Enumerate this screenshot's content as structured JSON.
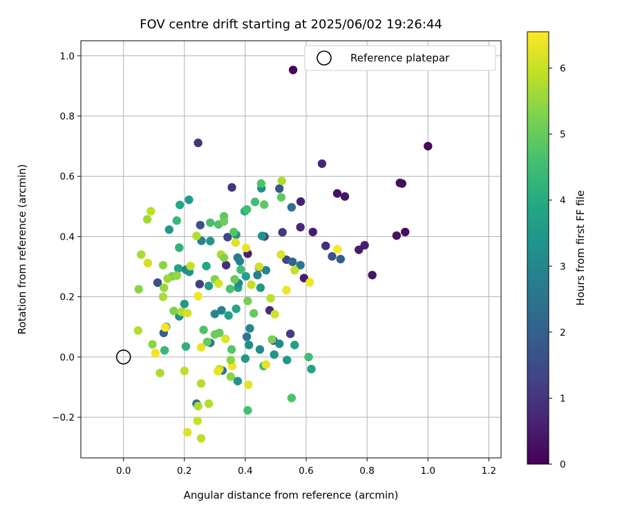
{
  "chart_data": {
    "type": "scatter",
    "title": "FOV centre drift starting at 2025/06/02 19:26:44",
    "xlabel": "Angular distance from reference (arcmin)",
    "ylabel": "Rotation from reference (arcmin)",
    "xlim": [
      -0.14,
      1.24
    ],
    "ylim": [
      -0.335,
      1.05
    ],
    "xticks": [
      0.0,
      0.2,
      0.4,
      0.6,
      0.8,
      1.0,
      1.2
    ],
    "xtick_labels": [
      "0.0",
      "0.2",
      "0.4",
      "0.6",
      "0.8",
      "1.0",
      "1.2"
    ],
    "yticks": [
      -0.2,
      0.0,
      0.2,
      0.4,
      0.6,
      0.8,
      1.0
    ],
    "ytick_labels": [
      "−0.2",
      "0.0",
      "0.2",
      "0.4",
      "0.6",
      "0.8",
      "1.0"
    ],
    "grid": true,
    "legend": {
      "position": "top-right",
      "entries": [
        "Reference platepar"
      ]
    },
    "reference_point": {
      "x": 0.0,
      "y": 0.0
    },
    "colorbar": {
      "label": "Hours from first FF file",
      "min": 0,
      "max": 6.55,
      "ticks": [
        0,
        1,
        2,
        3,
        4,
        5,
        6
      ],
      "tick_labels": [
        "0",
        "1",
        "2",
        "3",
        "4",
        "5",
        "6"
      ],
      "colormap": "viridis"
    },
    "points": [
      {
        "x": 0.557,
        "y": 0.953,
        "c": 0.05
      },
      {
        "x": 1.0,
        "y": 0.7,
        "c": 0.1
      },
      {
        "x": 0.908,
        "y": 0.578,
        "c": 0.2
      },
      {
        "x": 0.915,
        "y": 0.576,
        "c": 0.25
      },
      {
        "x": 0.925,
        "y": 0.415,
        "c": 0.2
      },
      {
        "x": 0.897,
        "y": 0.403,
        "c": 0.3
      },
      {
        "x": 0.702,
        "y": 0.543,
        "c": 0.3
      },
      {
        "x": 0.727,
        "y": 0.533,
        "c": 0.4
      },
      {
        "x": 0.817,
        "y": 0.272,
        "c": 0.4
      },
      {
        "x": 0.792,
        "y": 0.371,
        "c": 0.6
      },
      {
        "x": 0.773,
        "y": 0.356,
        "c": 0.5
      },
      {
        "x": 0.652,
        "y": 0.642,
        "c": 0.7
      },
      {
        "x": 0.622,
        "y": 0.415,
        "c": 0.5
      },
      {
        "x": 0.664,
        "y": 0.369,
        "c": 0.9
      },
      {
        "x": 0.245,
        "y": 0.711,
        "c": 1.0
      },
      {
        "x": 0.582,
        "y": 0.516,
        "c": 0.6
      },
      {
        "x": 0.581,
        "y": 0.431,
        "c": 0.8
      },
      {
        "x": 0.593,
        "y": 0.262,
        "c": 0.5
      },
      {
        "x": 0.356,
        "y": 0.563,
        "c": 1.0
      },
      {
        "x": 0.522,
        "y": 0.414,
        "c": 1.1
      },
      {
        "x": 0.463,
        "y": 0.4,
        "c": 1.2
      },
      {
        "x": 0.408,
        "y": 0.343,
        "c": 0.6
      },
      {
        "x": 0.337,
        "y": 0.305,
        "c": 0.9
      },
      {
        "x": 0.685,
        "y": 0.334,
        "c": 1.7
      },
      {
        "x": 0.713,
        "y": 0.325,
        "c": 1.9
      },
      {
        "x": 0.252,
        "y": 0.438,
        "c": 1.6
      },
      {
        "x": 0.512,
        "y": 0.559,
        "c": 1.8
      },
      {
        "x": 0.112,
        "y": 0.247,
        "c": 1.6
      },
      {
        "x": 0.25,
        "y": 0.242,
        "c": 1.2
      },
      {
        "x": 0.48,
        "y": 0.155,
        "c": 0.8
      },
      {
        "x": 0.548,
        "y": 0.077,
        "c": 1.2
      },
      {
        "x": 0.492,
        "y": 0.055,
        "c": 0.4
      },
      {
        "x": 0.535,
        "y": 0.323,
        "c": 1.4
      },
      {
        "x": 0.555,
        "y": 0.316,
        "c": 2.1
      },
      {
        "x": 0.581,
        "y": 0.305,
        "c": 2.6
      },
      {
        "x": 0.552,
        "y": 0.497,
        "c": 2.4
      },
      {
        "x": 0.342,
        "y": 0.398,
        "c": 1.4
      },
      {
        "x": 0.256,
        "y": 0.386,
        "c": 2.8
      },
      {
        "x": 0.132,
        "y": 0.08,
        "c": 2.0
      },
      {
        "x": 0.24,
        "y": -0.155,
        "c": 2.3
      },
      {
        "x": 0.325,
        "y": -0.045,
        "c": 2.5
      },
      {
        "x": 0.445,
        "y": 0.297,
        "c": 1.8
      },
      {
        "x": 0.468,
        "y": 0.288,
        "c": 3.0
      },
      {
        "x": 0.453,
        "y": 0.56,
        "c": 3.2
      },
      {
        "x": 0.215,
        "y": 0.522,
        "c": 3.6
      },
      {
        "x": 0.185,
        "y": 0.505,
        "c": 3.9
      },
      {
        "x": 0.15,
        "y": 0.423,
        "c": 3.5
      },
      {
        "x": 0.285,
        "y": 0.385,
        "c": 3.5
      },
      {
        "x": 0.37,
        "y": 0.406,
        "c": 3.4
      },
      {
        "x": 0.398,
        "y": 0.484,
        "c": 4.1
      },
      {
        "x": 0.405,
        "y": 0.49,
        "c": 4.5
      },
      {
        "x": 0.272,
        "y": 0.302,
        "c": 3.9
      },
      {
        "x": 0.375,
        "y": 0.33,
        "c": 2.6
      },
      {
        "x": 0.382,
        "y": 0.318,
        "c": 2.9
      },
      {
        "x": 0.44,
        "y": 0.272,
        "c": 2.8
      },
      {
        "x": 0.402,
        "y": 0.268,
        "c": 3.7
      },
      {
        "x": 0.45,
        "y": 0.23,
        "c": 3.5
      },
      {
        "x": 0.2,
        "y": 0.176,
        "c": 3.5
      },
      {
        "x": 0.183,
        "y": 0.135,
        "c": 3.2
      },
      {
        "x": 0.18,
        "y": 0.294,
        "c": 3.8
      },
      {
        "x": 0.183,
        "y": 0.363,
        "c": 4.2
      },
      {
        "x": 0.205,
        "y": 0.29,
        "c": 3.0
      },
      {
        "x": 0.216,
        "y": 0.283,
        "c": 3.3
      },
      {
        "x": 0.28,
        "y": 0.236,
        "c": 3.6
      },
      {
        "x": 0.3,
        "y": 0.143,
        "c": 3.0
      },
      {
        "x": 0.322,
        "y": 0.155,
        "c": 2.9
      },
      {
        "x": 0.285,
        "y": 0.047,
        "c": 2.7
      },
      {
        "x": 0.345,
        "y": 0.138,
        "c": 3.8
      },
      {
        "x": 0.376,
        "y": 0.23,
        "c": 3.8
      },
      {
        "x": 0.378,
        "y": 0.245,
        "c": 3.1
      },
      {
        "x": 0.405,
        "y": 0.067,
        "c": 2.6
      },
      {
        "x": 0.412,
        "y": 0.04,
        "c": 3.2
      },
      {
        "x": 0.415,
        "y": 0.095,
        "c": 3.0
      },
      {
        "x": 0.4,
        "y": -0.005,
        "c": 3.5
      },
      {
        "x": 0.37,
        "y": 0.16,
        "c": 3.9
      },
      {
        "x": 0.375,
        "y": -0.08,
        "c": 3.4
      },
      {
        "x": 0.448,
        "y": 0.025,
        "c": 3.1
      },
      {
        "x": 0.512,
        "y": 0.044,
        "c": 3.2
      },
      {
        "x": 0.495,
        "y": 0.008,
        "c": 3.4
      },
      {
        "x": 0.537,
        "y": -0.01,
        "c": 3.5
      },
      {
        "x": 0.562,
        "y": 0.04,
        "c": 3.7
      },
      {
        "x": 0.608,
        "y": 0.0,
        "c": 4.5
      },
      {
        "x": 0.617,
        "y": -0.04,
        "c": 3.8
      },
      {
        "x": 0.455,
        "y": 0.402,
        "c": 3.3
      },
      {
        "x": 0.46,
        "y": -0.03,
        "c": 4.4
      },
      {
        "x": 0.408,
        "y": -0.177,
        "c": 4.6
      },
      {
        "x": 0.552,
        "y": -0.136,
        "c": 4.7
      },
      {
        "x": 0.175,
        "y": 0.453,
        "c": 4.4
      },
      {
        "x": 0.285,
        "y": 0.446,
        "c": 4.6
      },
      {
        "x": 0.312,
        "y": 0.44,
        "c": 4.7
      },
      {
        "x": 0.33,
        "y": 0.467,
        "c": 4.9
      },
      {
        "x": 0.33,
        "y": 0.45,
        "c": 5.1
      },
      {
        "x": 0.362,
        "y": 0.415,
        "c": 4.8
      },
      {
        "x": 0.432,
        "y": 0.515,
        "c": 4.5
      },
      {
        "x": 0.452,
        "y": 0.576,
        "c": 4.7
      },
      {
        "x": 0.462,
        "y": 0.506,
        "c": 4.9
      },
      {
        "x": 0.518,
        "y": 0.53,
        "c": 4.9
      },
      {
        "x": 0.205,
        "y": 0.035,
        "c": 4.2
      },
      {
        "x": 0.135,
        "y": 0.022,
        "c": 4.4
      },
      {
        "x": 0.14,
        "y": 0.1,
        "c": 4.1
      },
      {
        "x": 0.263,
        "y": 0.09,
        "c": 4.7
      },
      {
        "x": 0.275,
        "y": 0.05,
        "c": 5.0
      },
      {
        "x": 0.3,
        "y": 0.075,
        "c": 5.1
      },
      {
        "x": 0.315,
        "y": 0.08,
        "c": 5.0
      },
      {
        "x": 0.355,
        "y": 0.025,
        "c": 4.8
      },
      {
        "x": 0.385,
        "y": 0.29,
        "c": 4.5
      },
      {
        "x": 0.365,
        "y": 0.258,
        "c": 5.0
      },
      {
        "x": 0.35,
        "y": 0.226,
        "c": 4.7
      },
      {
        "x": 0.3,
        "y": 0.258,
        "c": 5.3
      },
      {
        "x": 0.408,
        "y": 0.186,
        "c": 5.2
      },
      {
        "x": 0.428,
        "y": 0.145,
        "c": 5.0
      },
      {
        "x": 0.488,
        "y": 0.058,
        "c": 5.2
      },
      {
        "x": 0.352,
        "y": -0.065,
        "c": 5.4
      },
      {
        "x": 0.13,
        "y": 0.305,
        "c": 5.4
      },
      {
        "x": 0.16,
        "y": 0.268,
        "c": 5.2
      },
      {
        "x": 0.175,
        "y": 0.27,
        "c": 5.5
      },
      {
        "x": 0.19,
        "y": 0.15,
        "c": 5.8
      },
      {
        "x": 0.165,
        "y": 0.153,
        "c": 5.3
      },
      {
        "x": 0.145,
        "y": 0.26,
        "c": 5.6
      },
      {
        "x": 0.133,
        "y": 0.23,
        "c": 5.5
      },
      {
        "x": 0.13,
        "y": 0.2,
        "c": 5.7
      },
      {
        "x": 0.095,
        "y": 0.042,
        "c": 5.4
      },
      {
        "x": 0.245,
        "y": -0.163,
        "c": 5.7
      },
      {
        "x": 0.28,
        "y": -0.155,
        "c": 5.8
      },
      {
        "x": 0.243,
        "y": -0.212,
        "c": 6.0
      },
      {
        "x": 0.255,
        "y": -0.27,
        "c": 5.9
      },
      {
        "x": 0.21,
        "y": -0.25,
        "c": 6.2
      },
      {
        "x": 0.12,
        "y": -0.053,
        "c": 5.7
      },
      {
        "x": 0.2,
        "y": -0.046,
        "c": 5.9
      },
      {
        "x": 0.255,
        "y": -0.088,
        "c": 5.8
      },
      {
        "x": 0.315,
        "y": -0.04,
        "c": 6.0
      },
      {
        "x": 0.31,
        "y": -0.047,
        "c": 6.3
      },
      {
        "x": 0.357,
        "y": -0.03,
        "c": 6.4
      },
      {
        "x": 0.352,
        "y": -0.01,
        "c": 5.4
      },
      {
        "x": 0.41,
        "y": -0.092,
        "c": 6.3
      },
      {
        "x": 0.468,
        "y": -0.025,
        "c": 6.3
      },
      {
        "x": 0.255,
        "y": 0.032,
        "c": 6.3
      },
      {
        "x": 0.335,
        "y": 0.06,
        "c": 6.2
      },
      {
        "x": 0.105,
        "y": 0.013,
        "c": 6.4
      },
      {
        "x": 0.137,
        "y": 0.098,
        "c": 6.5
      },
      {
        "x": 0.048,
        "y": 0.088,
        "c": 5.8
      },
      {
        "x": 0.05,
        "y": 0.225,
        "c": 5.4
      },
      {
        "x": 0.058,
        "y": 0.34,
        "c": 5.7
      },
      {
        "x": 0.08,
        "y": 0.312,
        "c": 6.1
      },
      {
        "x": 0.078,
        "y": 0.457,
        "c": 5.6
      },
      {
        "x": 0.09,
        "y": 0.484,
        "c": 5.9
      },
      {
        "x": 0.21,
        "y": 0.146,
        "c": 6.1
      },
      {
        "x": 0.245,
        "y": 0.202,
        "c": 6.4
      },
      {
        "x": 0.22,
        "y": 0.302,
        "c": 6.0
      },
      {
        "x": 0.312,
        "y": 0.244,
        "c": 6.1
      },
      {
        "x": 0.32,
        "y": 0.34,
        "c": 5.8
      },
      {
        "x": 0.368,
        "y": 0.38,
        "c": 6.2
      },
      {
        "x": 0.403,
        "y": 0.362,
        "c": 6.3
      },
      {
        "x": 0.42,
        "y": 0.24,
        "c": 6.0
      },
      {
        "x": 0.445,
        "y": 0.3,
        "c": 6.1
      },
      {
        "x": 0.483,
        "y": 0.195,
        "c": 5.9
      },
      {
        "x": 0.497,
        "y": 0.142,
        "c": 6.1
      },
      {
        "x": 0.517,
        "y": 0.34,
        "c": 6.2
      },
      {
        "x": 0.535,
        "y": 0.222,
        "c": 6.4
      },
      {
        "x": 0.562,
        "y": 0.288,
        "c": 6.0
      },
      {
        "x": 0.612,
        "y": 0.248,
        "c": 6.4
      },
      {
        "x": 0.703,
        "y": 0.358,
        "c": 6.55
      },
      {
        "x": 0.52,
        "y": 0.585,
        "c": 5.7
      },
      {
        "x": 0.24,
        "y": 0.402,
        "c": 5.8
      },
      {
        "x": 0.33,
        "y": 0.33,
        "c": 5.3
      }
    ]
  }
}
